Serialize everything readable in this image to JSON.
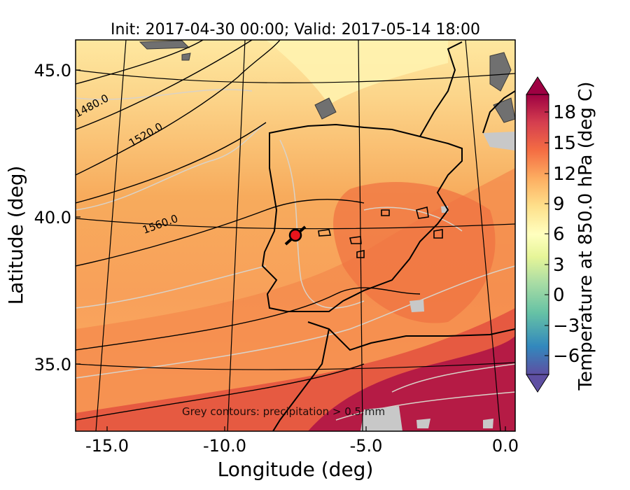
{
  "title": "Init: 2017-04-30 00:00; Valid: 2017-05-14 18:00",
  "map": {
    "xlabel": "Longitude (deg)",
    "ylabel": "Latitude (deg)",
    "x_ticks": [
      "-15.0",
      "-10.0",
      "-5.0",
      "0.0"
    ],
    "y_ticks": [
      "45.0",
      "40.0",
      "35.0"
    ],
    "geopotential_labels": [
      "1480.0",
      "1520.0",
      "1560.0"
    ],
    "annotation": "Grey contours: precipitation > 0.5 mm",
    "marker_color": "#e8141c"
  },
  "colorbar": {
    "label": "Temperature at 850.0 hPa (deg C)",
    "ticks": [
      "18",
      "15",
      "12",
      "9",
      "6",
      "3",
      "0",
      "−3",
      "−6"
    ],
    "colors": [
      "#98003f",
      "#d53e4f",
      "#f46d43",
      "#fdae61",
      "#fee08b",
      "#ffffbf",
      "#e6f598",
      "#abdda4",
      "#66c2a5",
      "#3288bd",
      "#5e4fa2"
    ]
  }
}
